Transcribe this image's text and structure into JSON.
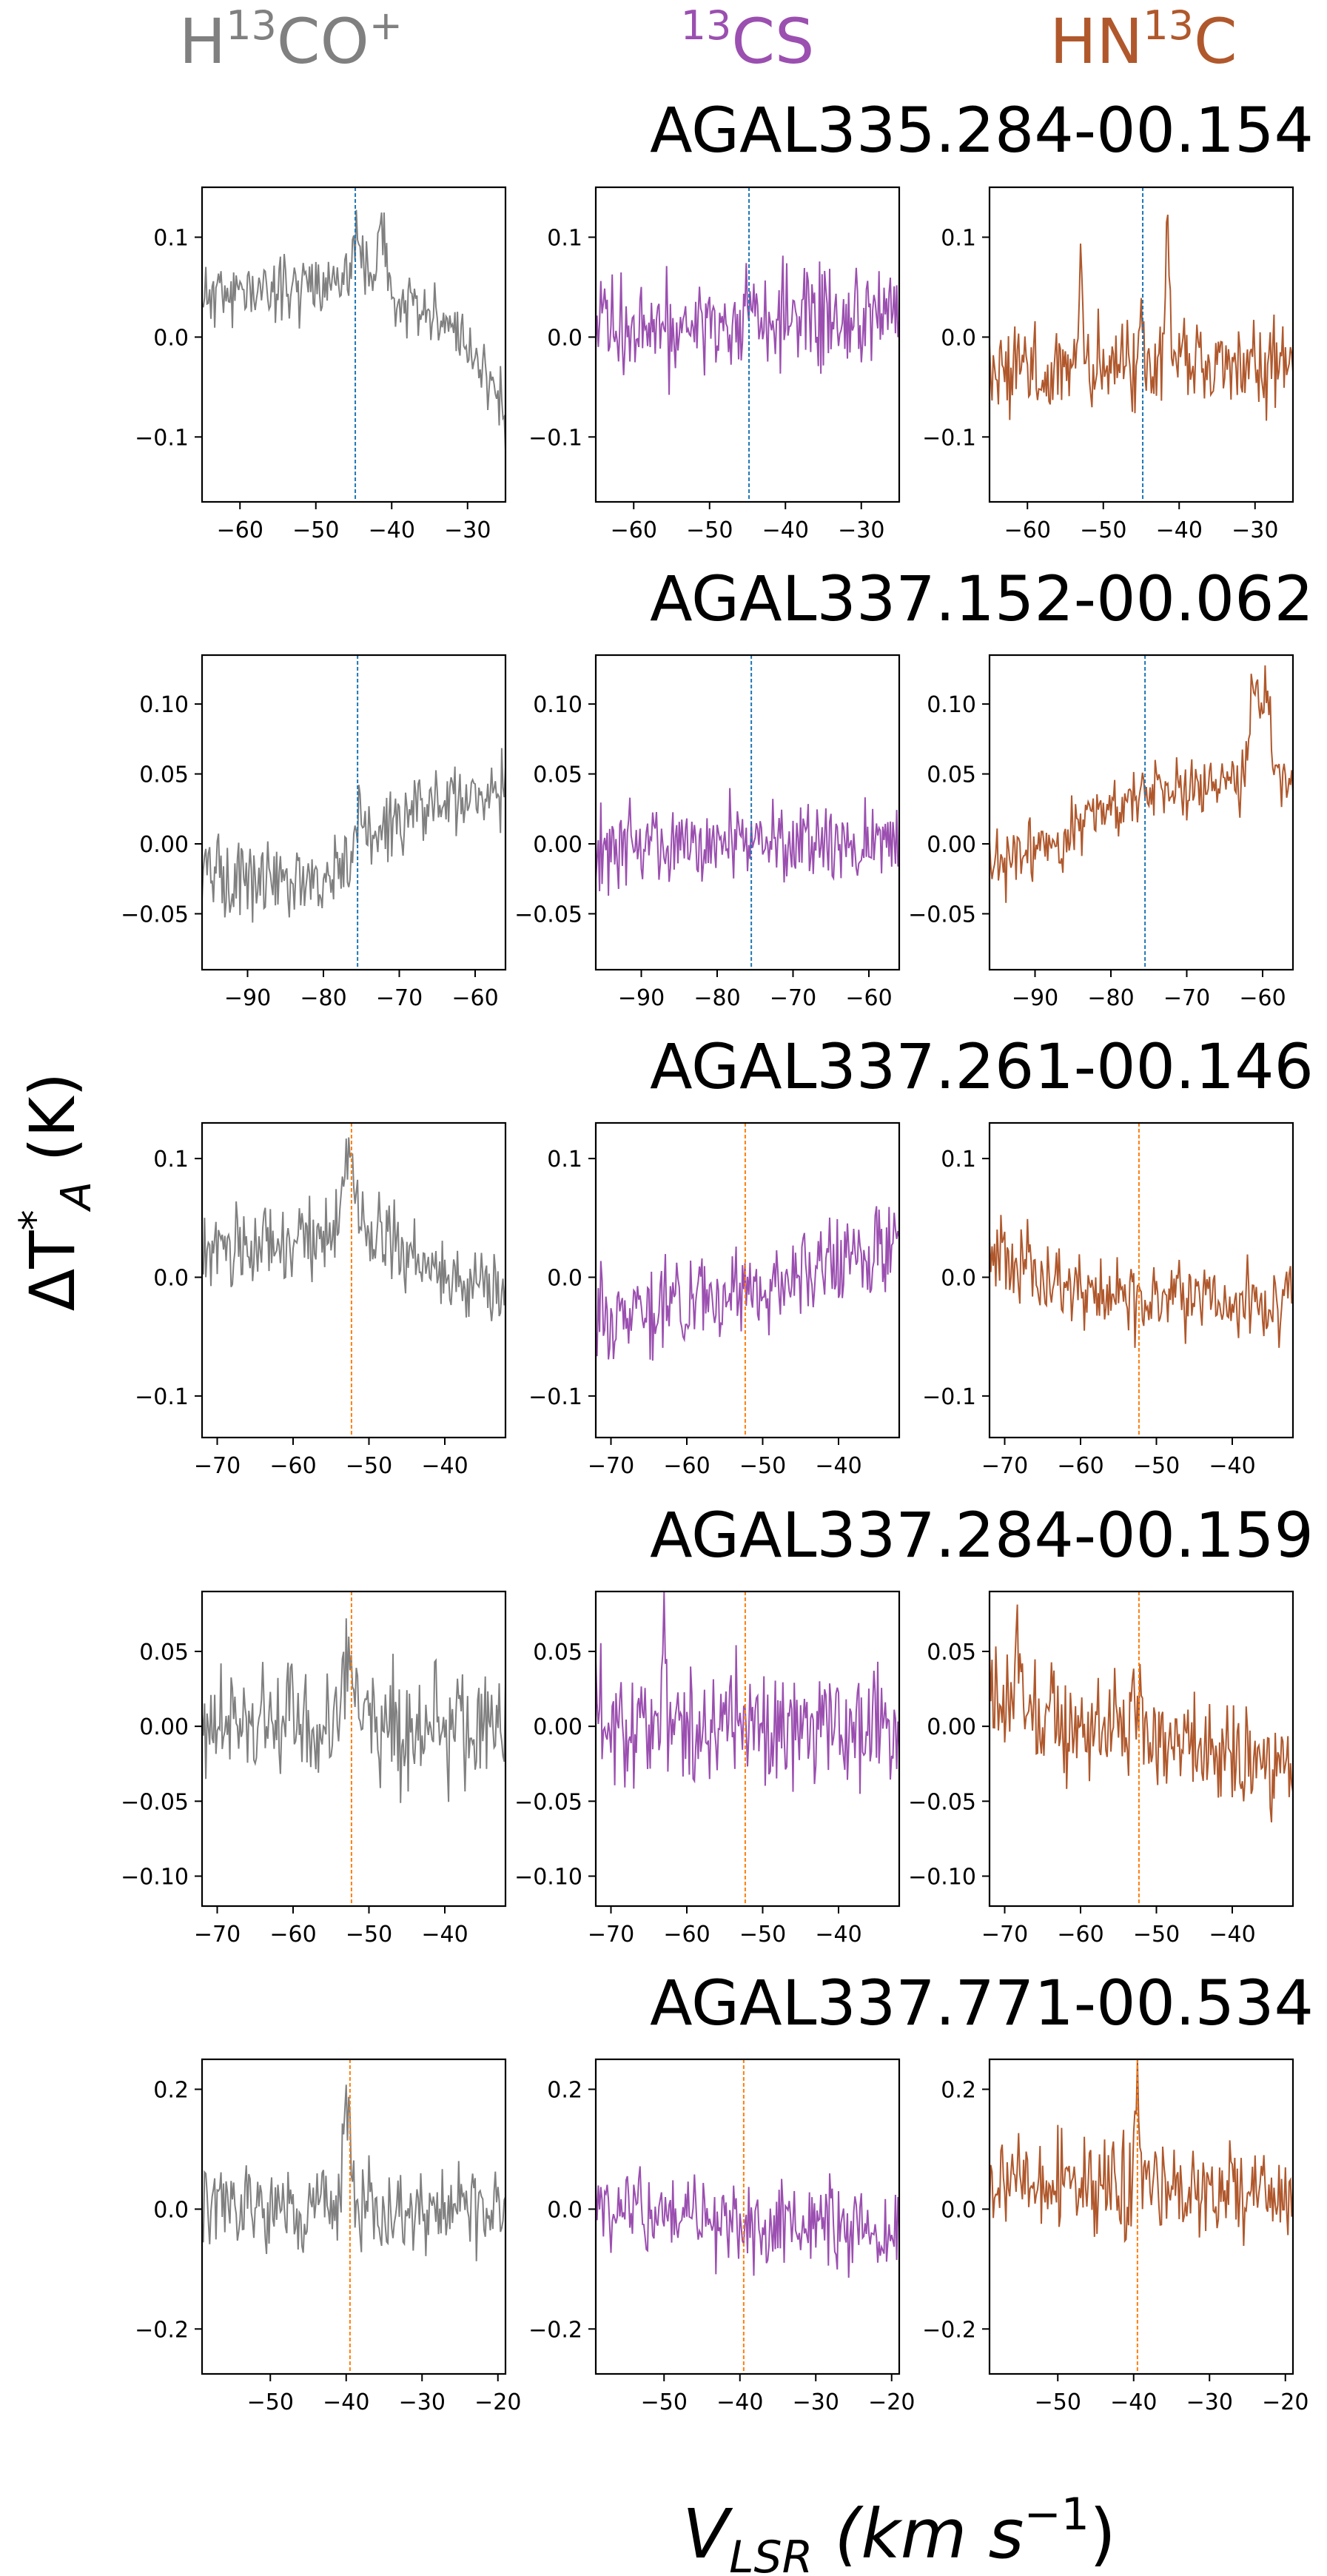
{
  "figure": {
    "ylabel_main": "ΔT",
    "ylabel_sup": "*",
    "ylabel_sub": "A",
    "ylabel_unit": " (K)",
    "xlabel_main": "V",
    "xlabel_sub": "LSR",
    "xlabel_unit_left": " (km s",
    "xlabel_unit_sup": "−1",
    "xlabel_unit_right": ")"
  },
  "molecules": [
    {
      "pre": "H",
      "sup": "13",
      "post": "CO",
      "post_sup": "+",
      "color": "#808080"
    },
    {
      "pre": "",
      "sup": "13",
      "post": "CS",
      "post_sup": "",
      "color": "#9b4fb0"
    },
    {
      "pre": "HN",
      "sup": "13",
      "post": "C",
      "post_sup": "",
      "color": "#b0582c"
    }
  ],
  "chart_data": [
    {
      "type": "line",
      "source": "AGAL335.284-00.154",
      "xlim": [
        -65,
        -25
      ],
      "ylim": [
        -0.165,
        0.15
      ],
      "xticks": [
        -60,
        -50,
        -40,
        -30
      ],
      "yticks": [
        0.1,
        0.0,
        -0.1
      ],
      "ytick_labels": [
        "0.1",
        "0.0",
        "−0.1"
      ],
      "vline": {
        "x": -44.8,
        "color": "#1f77b4"
      },
      "series": [
        {
          "molecule": "H13CO+",
          "base": [
            [
              -65,
              0.04
            ],
            [
              -45,
              0.06
            ],
            [
              -30,
              0.0
            ],
            [
              -25,
              -0.08
            ]
          ],
          "noise": 0.025,
          "peaks": [
            [
              -44.6,
              0.04,
              0.5
            ],
            [
              -41.3,
              0.08,
              0.45
            ]
          ],
          "seed": 11
        },
        {
          "molecule": "13CS",
          "base": [
            [
              -65,
              0.01
            ],
            [
              -25,
              0.02
            ]
          ],
          "noise": 0.04,
          "peaks": [],
          "seed": 12
        },
        {
          "molecule": "HN13C",
          "base": [
            [
              -65,
              -0.03
            ],
            [
              -25,
              -0.03
            ]
          ],
          "noise": 0.035,
          "peaks": [
            [
              -53,
              0.1,
              0.25
            ],
            [
              -41.5,
              0.12,
              0.3
            ],
            [
              -45,
              0.06,
              0.3
            ]
          ],
          "seed": 13
        }
      ]
    },
    {
      "type": "line",
      "source": "AGAL337.152-00.062",
      "xlim": [
        -96,
        -56
      ],
      "ylim": [
        -0.09,
        0.135
      ],
      "xticks": [
        -90,
        -80,
        -70,
        -60
      ],
      "yticks": [
        0.1,
        0.05,
        0.0,
        -0.05
      ],
      "ytick_labels": [
        "0.10",
        "0.05",
        "0.00",
        "−0.05"
      ],
      "vline": {
        "x": -75.5,
        "color": "#1f77b4"
      },
      "series": [
        {
          "molecule": "H13CO+",
          "base": [
            [
              -96,
              -0.02
            ],
            [
              -80,
              -0.03
            ],
            [
              -70,
              0.02
            ],
            [
              -56,
              0.04
            ]
          ],
          "noise": 0.02,
          "peaks": [
            [
              -75.3,
              0.03,
              0.4
            ]
          ],
          "seed": 21
        },
        {
          "molecule": "13CS",
          "base": [
            [
              -96,
              0.0
            ],
            [
              -56,
              0.0
            ]
          ],
          "noise": 0.022,
          "peaks": [],
          "seed": 22
        },
        {
          "molecule": "HN13C",
          "base": [
            [
              -96,
              -0.02
            ],
            [
              -75,
              0.04
            ],
            [
              -56,
              0.05
            ]
          ],
          "noise": 0.018,
          "peaks": [
            [
              -61,
              0.07,
              0.6
            ],
            [
              -59.5,
              0.06,
              0.4
            ]
          ],
          "seed": 23
        }
      ]
    },
    {
      "type": "line",
      "source": "AGAL337.261-00.146",
      "xlim": [
        -72,
        -32
      ],
      "ylim": [
        -0.135,
        0.13
      ],
      "xticks": [
        -70,
        -60,
        -50,
        -40
      ],
      "yticks": [
        0.1,
        0.0,
        -0.1
      ],
      "ytick_labels": [
        "0.1",
        "0.0",
        "−0.1"
      ],
      "vline": {
        "x": -52.3,
        "color": "#ff7f0e"
      },
      "series": [
        {
          "molecule": "H13CO+",
          "base": [
            [
              -72,
              0.02
            ],
            [
              -52,
              0.04
            ],
            [
              -40,
              0.0
            ],
            [
              -32,
              -0.01
            ]
          ],
          "noise": 0.025,
          "peaks": [
            [
              -52.5,
              0.07,
              0.7
            ]
          ],
          "seed": 31
        },
        {
          "molecule": "13CS",
          "base": [
            [
              -72,
              -0.03
            ],
            [
              -50,
              -0.01
            ],
            [
              -32,
              0.03
            ]
          ],
          "noise": 0.028,
          "peaks": [],
          "seed": 32
        },
        {
          "molecule": "HN13C",
          "base": [
            [
              -72,
              0.02
            ],
            [
              -55,
              -0.02
            ],
            [
              -32,
              -0.02
            ]
          ],
          "noise": 0.025,
          "peaks": [],
          "seed": 33
        }
      ]
    },
    {
      "type": "line",
      "source": "AGAL337.284-00.159",
      "xlim": [
        -72,
        -32
      ],
      "ylim": [
        -0.12,
        0.09
      ],
      "xticks": [
        -70,
        -60,
        -50,
        -40
      ],
      "yticks": [
        0.05,
        0.0,
        -0.05,
        -0.1
      ],
      "ytick_labels": [
        "0.05",
        "0.00",
        "−0.05",
        "−0.10"
      ],
      "vline": {
        "x": -52.3,
        "color": "#ff7f0e"
      },
      "series": [
        {
          "molecule": "H13CO+",
          "base": [
            [
              -72,
              0.0
            ],
            [
              -32,
              0.0
            ]
          ],
          "noise": 0.03,
          "peaks": [
            [
              -52.8,
              0.05,
              0.4
            ]
          ],
          "seed": 41
        },
        {
          "molecule": "13CS",
          "base": [
            [
              -72,
              0.0
            ],
            [
              -32,
              0.0
            ]
          ],
          "noise": 0.032,
          "peaks": [
            [
              -63,
              0.06,
              0.3
            ]
          ],
          "seed": 42
        },
        {
          "molecule": "HN13C",
          "base": [
            [
              -72,
              0.02
            ],
            [
              -50,
              -0.01
            ],
            [
              -32,
              -0.03
            ]
          ],
          "noise": 0.028,
          "peaks": [
            [
              -68,
              0.05,
              0.3
            ],
            [
              -52.5,
              0.04,
              0.4
            ]
          ],
          "seed": 43
        }
      ]
    },
    {
      "type": "line",
      "source": "AGAL337.771-00.534",
      "xlim": [
        -59,
        -19
      ],
      "ylim": [
        -0.275,
        0.25
      ],
      "xticks": [
        -50,
        -40,
        -30,
        -20
      ],
      "yticks": [
        0.2,
        0.0,
        -0.2
      ],
      "ytick_labels": [
        "0.2",
        "0.0",
        "−0.2"
      ],
      "vline": {
        "x": -39.5,
        "color": "#ff7f0e"
      },
      "series": [
        {
          "molecule": "H13CO+",
          "base": [
            [
              -59,
              0.0
            ],
            [
              -19,
              0.0
            ]
          ],
          "noise": 0.055,
          "peaks": [
            [
              -39.8,
              0.17,
              0.5
            ]
          ],
          "seed": 51
        },
        {
          "molecule": "13CS",
          "base": [
            [
              -59,
              0.0
            ],
            [
              -19,
              -0.05
            ]
          ],
          "noise": 0.06,
          "peaks": [],
          "seed": 52
        },
        {
          "molecule": "HN13C",
          "base": [
            [
              -59,
              0.05
            ],
            [
              -19,
              0.02
            ]
          ],
          "noise": 0.06,
          "peaks": [
            [
              -39.5,
              0.15,
              0.3
            ]
          ],
          "seed": 53
        }
      ]
    }
  ]
}
